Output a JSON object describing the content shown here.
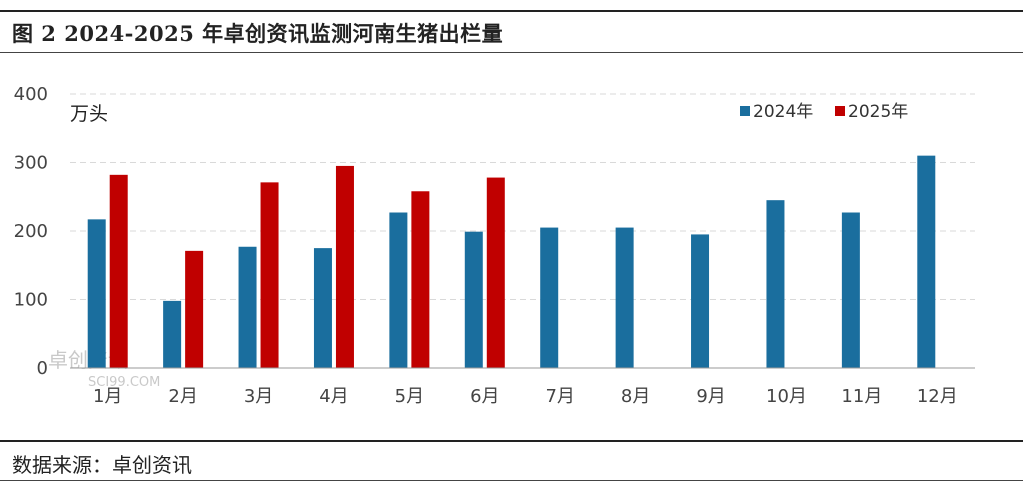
{
  "figure": {
    "title": "图 2  2024-2025 年卓创资讯监测河南生猪出栏量",
    "source": "数据来源：卓创资讯"
  },
  "watermark": {
    "line1": "卓创资讯",
    "line2": "SCI99.COM"
  },
  "colors": {
    "s2024": "#1a6e9e",
    "s2025": "#c00000",
    "grid": "#d9d9d9",
    "axis": "#999999"
  },
  "chart_data": {
    "type": "bar",
    "unit_label": "万头",
    "categories": [
      "1月",
      "2月",
      "3月",
      "4月",
      "5月",
      "6月",
      "7月",
      "8月",
      "9月",
      "10月",
      "11月",
      "12月"
    ],
    "series": [
      {
        "name": "2024年",
        "values": [
          217,
          98,
          177,
          175,
          227,
          199,
          205,
          205,
          195,
          245,
          227,
          310
        ]
      },
      {
        "name": "2025年",
        "values": [
          282,
          171,
          271,
          295,
          258,
          278,
          null,
          null,
          null,
          null,
          null,
          null
        ]
      }
    ],
    "ylim": [
      0,
      400
    ],
    "yticks": [
      0,
      100,
      200,
      300,
      400
    ],
    "grid": true,
    "legend_position": "top-right"
  }
}
